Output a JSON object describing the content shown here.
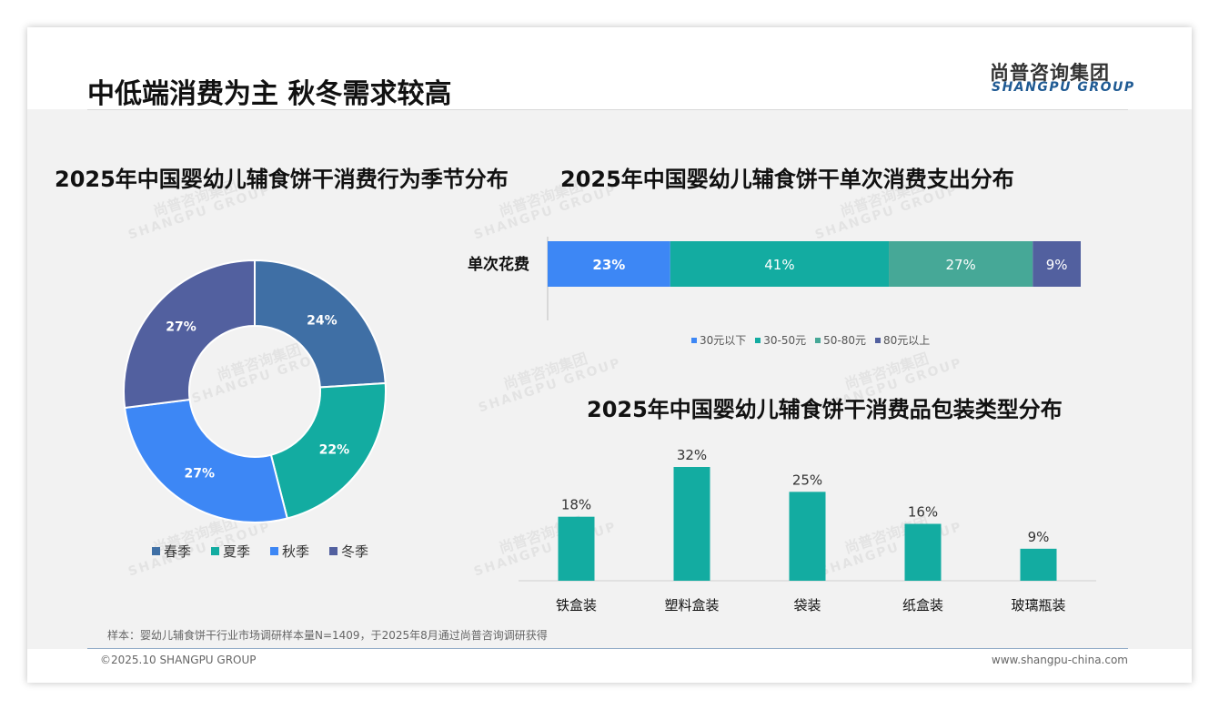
{
  "header": {
    "title": "中低端消费为主 秋冬需求较高",
    "logo_cn": "尚普咨询集团",
    "logo_en": "SHANGPU GROUP"
  },
  "watermark": {
    "cn": "尚普咨询集团",
    "en": "SHANGPU GROUP"
  },
  "chart_data": [
    {
      "type": "pie",
      "title": "2025年中国婴幼儿辅食饼干消费行为季节分布",
      "categories": [
        "春季",
        "夏季",
        "秋季",
        "冬季"
      ],
      "values": [
        24,
        22,
        27,
        27
      ],
      "labels": [
        "24%",
        "22%",
        "27%",
        "27%"
      ],
      "colors": [
        "#3f6fa5",
        "#13aca1",
        "#3d87f5",
        "#52609f"
      ],
      "donut": true,
      "legend": "bottom"
    },
    {
      "type": "bar",
      "orientation": "horizontal",
      "stacked": true,
      "title": "2025年中国婴幼儿辅食饼干单次消费支出分布",
      "categories": [
        "单次花费"
      ],
      "series": [
        {
          "name": "30元以下",
          "values": [
            23
          ],
          "label": "23%",
          "color": "#3d87f5"
        },
        {
          "name": "30-50元",
          "values": [
            41
          ],
          "label": "41%",
          "color": "#13aca1"
        },
        {
          "name": "50-80元",
          "values": [
            27
          ],
          "label": "27%",
          "color": "#46a897"
        },
        {
          "name": "80元以上",
          "values": [
            9
          ],
          "label": "9%",
          "color": "#52609f"
        }
      ],
      "legend": "bottom"
    },
    {
      "type": "bar",
      "title": "2025年中国婴幼儿辅食饼干消费品包装类型分布",
      "categories": [
        "铁盒装",
        "塑料盒装",
        "袋装",
        "纸盒装",
        "玻璃瓶装"
      ],
      "values": [
        18,
        32,
        25,
        16,
        9
      ],
      "labels": [
        "18%",
        "32%",
        "25%",
        "16%",
        "9%"
      ],
      "color": "#13aca1"
    }
  ],
  "footer": {
    "sample_note": "样本：婴幼儿辅食饼干行业市场调研样本量N=1409，于2025年8月通过尚普咨询调研获得",
    "copyright": "©2025.10 SHANGPU GROUP",
    "website": "www.shangpu-china.com"
  }
}
